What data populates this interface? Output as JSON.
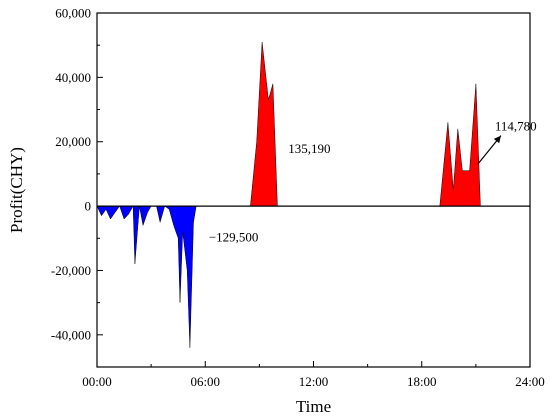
{
  "chart_data": {
    "type": "area",
    "xlabel": "Time",
    "ylabel": "Profit(CHY)",
    "xlim": [
      0,
      24
    ],
    "ylim": [
      -50000,
      60000
    ],
    "x_ticks": [
      {
        "value": 0,
        "label": "00:00"
      },
      {
        "value": 6,
        "label": "06:00"
      },
      {
        "value": 12,
        "label": "12:00"
      },
      {
        "value": 18,
        "label": "18:00"
      },
      {
        "value": 24,
        "label": "24:00"
      }
    ],
    "y_ticks": [
      {
        "value": -40000,
        "label": "-40,000"
      },
      {
        "value": -20000,
        "label": "-20,000"
      },
      {
        "value": 0,
        "label": "0"
      },
      {
        "value": 20000,
        "label": "20,000"
      },
      {
        "value": 40000,
        "label": "40,000"
      },
      {
        "value": 60000,
        "label": "60,000"
      }
    ],
    "grid": false,
    "series": [
      {
        "color": "#0000ff",
        "points": [
          [
            0.0,
            0
          ],
          [
            0.25,
            -3000
          ],
          [
            0.5,
            -1000
          ],
          [
            0.75,
            -4000
          ],
          [
            1.0,
            -2000
          ],
          [
            1.25,
            0
          ],
          [
            1.5,
            -4000
          ],
          [
            1.75,
            -2500
          ],
          [
            2.0,
            0
          ],
          [
            2.1,
            -18000
          ],
          [
            2.35,
            0
          ],
          [
            2.55,
            -6000
          ],
          [
            2.8,
            -2000
          ],
          [
            3.0,
            0
          ],
          [
            3.3,
            0
          ],
          [
            3.5,
            -5000
          ],
          [
            3.75,
            0
          ],
          [
            4.0,
            -1000
          ],
          [
            4.25,
            -6000
          ],
          [
            4.5,
            -10000
          ],
          [
            4.6,
            -30000
          ],
          [
            4.75,
            -8000
          ],
          [
            5.0,
            -20000
          ],
          [
            5.15,
            -44000
          ],
          [
            5.35,
            -5000
          ],
          [
            5.5,
            0
          ]
        ]
      },
      {
        "color": "#ff0000",
        "points": [
          [
            8.5,
            0
          ],
          [
            8.85,
            20000
          ],
          [
            9.15,
            51000
          ],
          [
            9.5,
            33000
          ],
          [
            9.75,
            38000
          ],
          [
            10.0,
            0
          ]
        ]
      },
      {
        "color": "#ff0000",
        "points": [
          [
            19.0,
            0
          ],
          [
            19.45,
            26000
          ],
          [
            19.75,
            5000
          ],
          [
            20.0,
            24000
          ],
          [
            20.25,
            11000
          ],
          [
            20.65,
            11000
          ],
          [
            21.0,
            38000
          ],
          [
            21.25,
            0
          ]
        ]
      }
    ],
    "annotations": [
      {
        "text": "−129,500",
        "x": 6.2,
        "y": -11000
      },
      {
        "text": "135,190",
        "x": 10.6,
        "y": 16500
      },
      {
        "text": "114,780",
        "x": 22.05,
        "y": 23500
      }
    ],
    "arrow": {
      "from": [
        21.9,
        17500
      ],
      "to": [
        21.75,
        17500
      ],
      "head": [
        22.5,
        22500
      ]
    }
  }
}
